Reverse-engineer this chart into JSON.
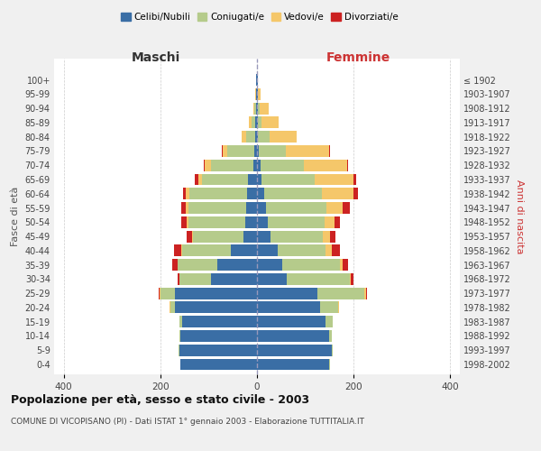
{
  "age_groups": [
    "0-4",
    "5-9",
    "10-14",
    "15-19",
    "20-24",
    "25-29",
    "30-34",
    "35-39",
    "40-44",
    "45-49",
    "50-54",
    "55-59",
    "60-64",
    "65-69",
    "70-74",
    "75-79",
    "80-84",
    "85-89",
    "90-94",
    "95-99",
    "100+"
  ],
  "birth_years": [
    "1998-2002",
    "1993-1997",
    "1988-1992",
    "1983-1987",
    "1978-1982",
    "1973-1977",
    "1968-1972",
    "1963-1967",
    "1958-1962",
    "1953-1957",
    "1948-1952",
    "1943-1947",
    "1938-1942",
    "1933-1937",
    "1928-1932",
    "1923-1927",
    "1918-1922",
    "1913-1917",
    "1908-1912",
    "1903-1907",
    "≤ 1902"
  ],
  "maschi": {
    "celibi": [
      158,
      160,
      158,
      155,
      170,
      170,
      95,
      82,
      55,
      28,
      24,
      22,
      20,
      18,
      8,
      6,
      3,
      3,
      2,
      1,
      1
    ],
    "coniugati": [
      1,
      2,
      3,
      5,
      10,
      30,
      65,
      82,
      100,
      105,
      118,
      120,
      120,
      95,
      88,
      55,
      20,
      8,
      3,
      1,
      0
    ],
    "vedovi": [
      0,
      0,
      0,
      0,
      1,
      2,
      0,
      0,
      1,
      2,
      3,
      5,
      8,
      8,
      12,
      10,
      8,
      5,
      2,
      1,
      0
    ],
    "divorziati": [
      0,
      0,
      0,
      0,
      1,
      2,
      5,
      12,
      15,
      10,
      12,
      10,
      5,
      8,
      2,
      2,
      0,
      0,
      0,
      0,
      0
    ]
  },
  "femmine": {
    "nubili": [
      150,
      155,
      150,
      142,
      130,
      125,
      62,
      52,
      42,
      28,
      22,
      18,
      14,
      10,
      7,
      4,
      2,
      2,
      1,
      1,
      1
    ],
    "coniugate": [
      1,
      2,
      4,
      14,
      38,
      98,
      130,
      120,
      100,
      108,
      118,
      125,
      120,
      110,
      90,
      55,
      25,
      8,
      4,
      1,
      0
    ],
    "vedove": [
      0,
      0,
      0,
      0,
      1,
      2,
      2,
      5,
      12,
      15,
      20,
      35,
      65,
      80,
      90,
      90,
      55,
      35,
      20,
      5,
      1
    ],
    "divorziate": [
      0,
      0,
      0,
      0,
      1,
      2,
      5,
      12,
      18,
      12,
      12,
      15,
      10,
      5,
      2,
      2,
      0,
      0,
      0,
      0,
      0
    ]
  },
  "colors": {
    "celibi_nubili": "#3a6ea5",
    "coniugati": "#b5cb8b",
    "vedovi": "#f5c76a",
    "divorziati": "#cc2222"
  },
  "xlim": 420,
  "title": "Popolazione per età, sesso e stato civile - 2003",
  "subtitle": "COMUNE DI VICOPISANO (PI) - Dati ISTAT 1° gennaio 2003 - Elaborazione TUTTITALIA.IT",
  "ylabel_left": "Fasce di età",
  "ylabel_right": "Anni di nascita",
  "xlabel_left": "Maschi",
  "xlabel_right": "Femmine",
  "background_color": "#f0f0f0",
  "plot_bg_color": "#ffffff"
}
